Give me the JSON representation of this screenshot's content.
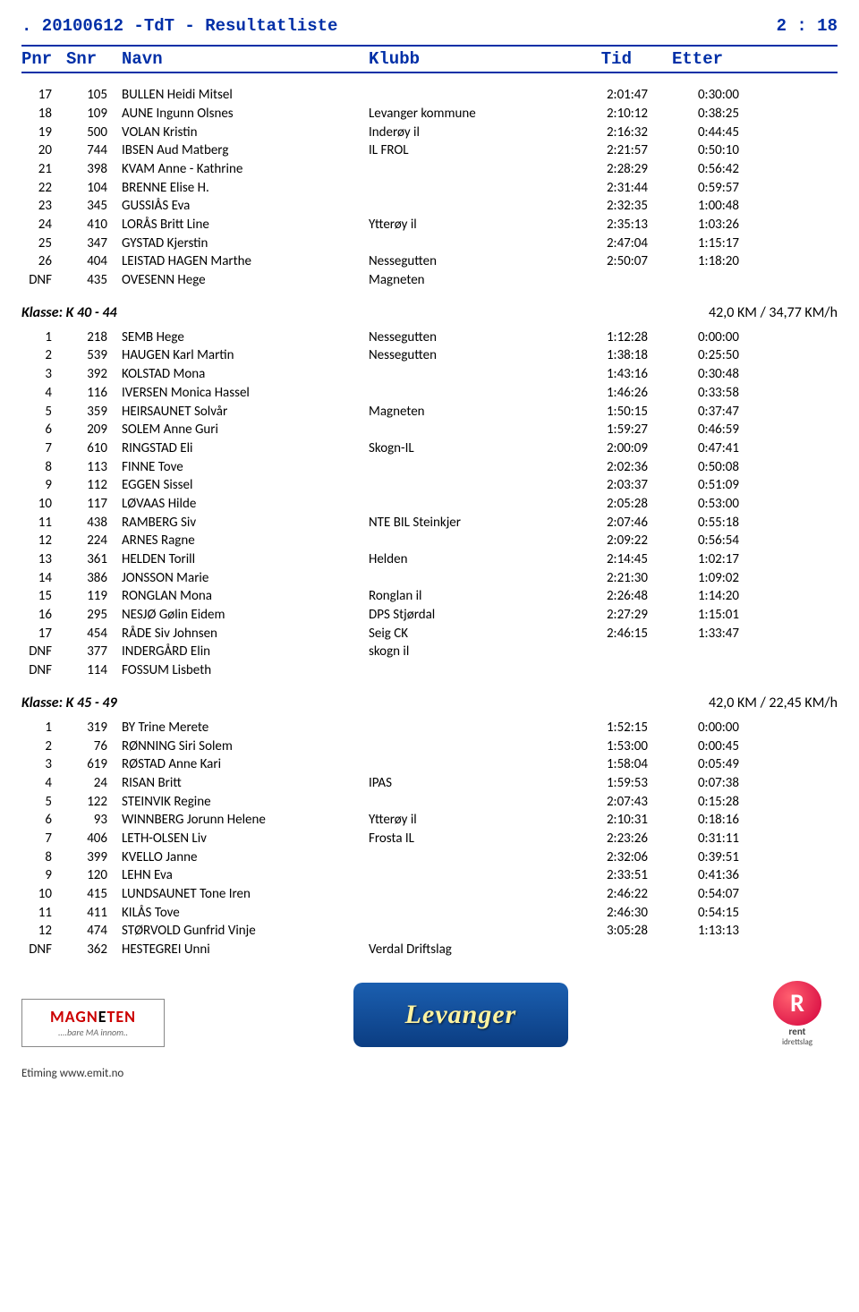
{
  "page": {
    "title_left": ". 20100612 -TdT - Resultatliste",
    "title_right": "2 : 18",
    "footer": "Etiming www.emit.no"
  },
  "columns": {
    "pnr": "Pnr",
    "snr": "Snr",
    "navn": "Navn",
    "klubb": "Klubb",
    "tid": "Tid",
    "etter": "Etter"
  },
  "logos": {
    "magneten_main": "MAGN  TEN",
    "magneten_e": "E",
    "magneten_sub": "....bare MA innom..",
    "levanger": "Levanger",
    "rent_label": "rent",
    "rent_sub": "idrettslag"
  },
  "blocks": [
    {
      "rows": [
        {
          "pnr": "17",
          "snr": "105",
          "navn": "BULLEN Heidi Mitsel",
          "klubb": "",
          "tid": "2:01:47",
          "etter": "0:30:00"
        },
        {
          "pnr": "18",
          "snr": "109",
          "navn": "AUNE Ingunn Olsnes",
          "klubb": "Levanger kommune",
          "tid": "2:10:12",
          "etter": "0:38:25"
        },
        {
          "pnr": "19",
          "snr": "500",
          "navn": "VOLAN Kristin",
          "klubb": "Inderøy il",
          "tid": "2:16:32",
          "etter": "0:44:45"
        },
        {
          "pnr": "20",
          "snr": "744",
          "navn": "IBSEN Aud Matberg",
          "klubb": "IL FROL",
          "tid": "2:21:57",
          "etter": "0:50:10"
        },
        {
          "pnr": "21",
          "snr": "398",
          "navn": "KVAM Anne - Kathrine",
          "klubb": "",
          "tid": "2:28:29",
          "etter": "0:56:42"
        },
        {
          "pnr": "22",
          "snr": "104",
          "navn": "BRENNE Elise H.",
          "klubb": "",
          "tid": "2:31:44",
          "etter": "0:59:57"
        },
        {
          "pnr": "23",
          "snr": "345",
          "navn": "GUSSIÅS Eva",
          "klubb": "",
          "tid": "2:32:35",
          "etter": "1:00:48"
        },
        {
          "pnr": "24",
          "snr": "410",
          "navn": "LORÅS Britt Line",
          "klubb": "Ytterøy il",
          "tid": "2:35:13",
          "etter": "1:03:26"
        },
        {
          "pnr": "25",
          "snr": "347",
          "navn": "GYSTAD Kjerstin",
          "klubb": "",
          "tid": "2:47:04",
          "etter": "1:15:17"
        },
        {
          "pnr": "26",
          "snr": "404",
          "navn": "LEISTAD HAGEN Marthe",
          "klubb": "Nessegutten",
          "tid": "2:50:07",
          "etter": "1:18:20"
        },
        {
          "pnr": "DNF",
          "snr": "435",
          "navn": "OVESENN Hege",
          "klubb": "Magneten",
          "tid": "",
          "etter": ""
        }
      ]
    },
    {
      "klasse_left": "Klasse: K 40 - 44",
      "klasse_right": "42,0 KM / 34,77 KM/h",
      "rows": [
        {
          "pnr": "1",
          "snr": "218",
          "navn": "SEMB Hege",
          "klubb": "Nessegutten",
          "tid": "1:12:28",
          "etter": "0:00:00"
        },
        {
          "pnr": "2",
          "snr": "539",
          "navn": "HAUGEN Karl Martin",
          "klubb": "Nessegutten",
          "tid": "1:38:18",
          "etter": "0:25:50"
        },
        {
          "pnr": "3",
          "snr": "392",
          "navn": "KOLSTAD Mona",
          "klubb": "",
          "tid": "1:43:16",
          "etter": "0:30:48"
        },
        {
          "pnr": "4",
          "snr": "116",
          "navn": "IVERSEN Monica Hassel",
          "klubb": "",
          "tid": "1:46:26",
          "etter": "0:33:58"
        },
        {
          "pnr": "5",
          "snr": "359",
          "navn": "HEIRSAUNET Solvår",
          "klubb": "Magneten",
          "tid": "1:50:15",
          "etter": "0:37:47"
        },
        {
          "pnr": "6",
          "snr": "209",
          "navn": "SOLEM Anne Guri",
          "klubb": "",
          "tid": "1:59:27",
          "etter": "0:46:59"
        },
        {
          "pnr": "7",
          "snr": "610",
          "navn": "RINGSTAD Eli",
          "klubb": "Skogn-IL",
          "tid": "2:00:09",
          "etter": "0:47:41"
        },
        {
          "pnr": "8",
          "snr": "113",
          "navn": "FINNE Tove",
          "klubb": "",
          "tid": "2:02:36",
          "etter": "0:50:08"
        },
        {
          "pnr": "9",
          "snr": "112",
          "navn": "EGGEN Sissel",
          "klubb": "",
          "tid": "2:03:37",
          "etter": "0:51:09"
        },
        {
          "pnr": "10",
          "snr": "117",
          "navn": "LØVAAS Hilde",
          "klubb": "",
          "tid": "2:05:28",
          "etter": "0:53:00"
        },
        {
          "pnr": "11",
          "snr": "438",
          "navn": "RAMBERG Siv",
          "klubb": "NTE BIL Steinkjer",
          "tid": "2:07:46",
          "etter": "0:55:18"
        },
        {
          "pnr": "12",
          "snr": "224",
          "navn": "ARNES Ragne",
          "klubb": "",
          "tid": "2:09:22",
          "etter": "0:56:54"
        },
        {
          "pnr": "13",
          "snr": "361",
          "navn": "HELDEN Torill",
          "klubb": "Helden",
          "tid": "2:14:45",
          "etter": "1:02:17"
        },
        {
          "pnr": "14",
          "snr": "386",
          "navn": "JONSSON Marie",
          "klubb": "",
          "tid": "2:21:30",
          "etter": "1:09:02"
        },
        {
          "pnr": "15",
          "snr": "119",
          "navn": "RONGLAN Mona",
          "klubb": "Ronglan il",
          "tid": "2:26:48",
          "etter": "1:14:20"
        },
        {
          "pnr": "16",
          "snr": "295",
          "navn": "NESJØ Gølin Eidem",
          "klubb": "DPS Stjørdal",
          "tid": "2:27:29",
          "etter": "1:15:01"
        },
        {
          "pnr": "17",
          "snr": "454",
          "navn": "RÅDE Siv Johnsen",
          "klubb": "Seig CK",
          "tid": "2:46:15",
          "etter": "1:33:47"
        },
        {
          "pnr": "DNF",
          "snr": "377",
          "navn": "INDERGÅRD Elin",
          "klubb": "skogn il",
          "tid": "",
          "etter": ""
        },
        {
          "pnr": "DNF",
          "snr": "114",
          "navn": "FOSSUM Lisbeth",
          "klubb": "",
          "tid": "",
          "etter": ""
        }
      ]
    },
    {
      "klasse_left": "Klasse: K 45 - 49",
      "klasse_right": "42,0 KM / 22,45 KM/h",
      "rows": [
        {
          "pnr": "1",
          "snr": "319",
          "navn": "BY Trine Merete",
          "klubb": "",
          "tid": "1:52:15",
          "etter": "0:00:00"
        },
        {
          "pnr": "2",
          "snr": "76",
          "navn": "RØNNING Siri Solem",
          "klubb": "",
          "tid": "1:53:00",
          "etter": "0:00:45"
        },
        {
          "pnr": "3",
          "snr": "619",
          "navn": "RØSTAD Anne Kari",
          "klubb": "",
          "tid": "1:58:04",
          "etter": "0:05:49"
        },
        {
          "pnr": "4",
          "snr": "24",
          "navn": "RISAN Britt",
          "klubb": "IPAS",
          "tid": "1:59:53",
          "etter": "0:07:38"
        },
        {
          "pnr": "5",
          "snr": "122",
          "navn": "STEINVIK Regine",
          "klubb": "",
          "tid": "2:07:43",
          "etter": "0:15:28"
        },
        {
          "pnr": "6",
          "snr": "93",
          "navn": "WINNBERG Jorunn Helene",
          "klubb": "Ytterøy il",
          "tid": "2:10:31",
          "etter": "0:18:16"
        },
        {
          "pnr": "7",
          "snr": "406",
          "navn": "LETH-OLSEN Liv",
          "klubb": "Frosta IL",
          "tid": "2:23:26",
          "etter": "0:31:11"
        },
        {
          "pnr": "8",
          "snr": "399",
          "navn": "KVELLO Janne",
          "klubb": "",
          "tid": "2:32:06",
          "etter": "0:39:51"
        },
        {
          "pnr": "9",
          "snr": "120",
          "navn": "LEHN Eva",
          "klubb": "",
          "tid": "2:33:51",
          "etter": "0:41:36"
        },
        {
          "pnr": "10",
          "snr": "415",
          "navn": "LUNDSAUNET Tone Iren",
          "klubb": "",
          "tid": "2:46:22",
          "etter": "0:54:07"
        },
        {
          "pnr": "11",
          "snr": "411",
          "navn": "KILÅS Tove",
          "klubb": "",
          "tid": "2:46:30",
          "etter": "0:54:15"
        },
        {
          "pnr": "12",
          "snr": "474",
          "navn": "STØRVOLD Gunfrid Vinje",
          "klubb": "",
          "tid": "3:05:28",
          "etter": "1:13:13"
        },
        {
          "pnr": "DNF",
          "snr": "362",
          "navn": "HESTEGREI Unni",
          "klubb": "Verdal Driftslag",
          "tid": "",
          "etter": ""
        }
      ]
    }
  ]
}
